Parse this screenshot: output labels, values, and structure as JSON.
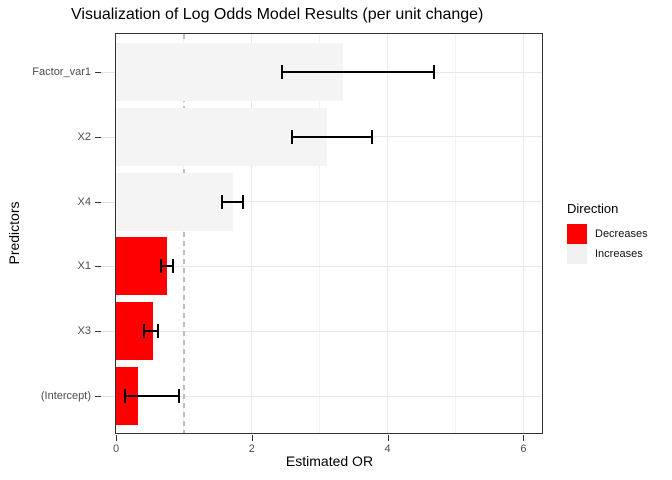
{
  "chart_data": {
    "type": "bar",
    "orientation": "horizontal",
    "title": "Visualization of Log Odds Model Results (per unit change)",
    "xlabel": "Estimated OR",
    "ylabel": "Predictors",
    "x_ticks": [
      0,
      2,
      4,
      6
    ],
    "x_minor_ticks": [
      1,
      3,
      5
    ],
    "xlim": [
      0,
      6.3
    ],
    "grid": "on",
    "reference_line": {
      "x": 1,
      "style": "dashed",
      "color": "#BDBDBD"
    },
    "rows": [
      {
        "label": "Factor_var1",
        "or": 3.35,
        "ci_low": 2.45,
        "ci_high": 4.69,
        "direction": "Increases"
      },
      {
        "label": "X2",
        "or": 3.11,
        "ci_low": 2.59,
        "ci_high": 3.77,
        "direction": "Increases"
      },
      {
        "label": "X4",
        "or": 1.72,
        "ci_low": 1.56,
        "ci_high": 1.87,
        "direction": "Increases"
      },
      {
        "label": "X1",
        "or": 0.75,
        "ci_low": 0.66,
        "ci_high": 0.84,
        "direction": "Decreases"
      },
      {
        "label": "X3",
        "or": 0.55,
        "ci_low": 0.41,
        "ci_high": 0.62,
        "direction": "Decreases"
      },
      {
        "label": "(Intercept)",
        "or": 0.32,
        "ci_low": 0.13,
        "ci_high": 0.93,
        "direction": "Decreases"
      }
    ],
    "legend": {
      "title": "Direction",
      "position": "right",
      "entries": [
        {
          "label": "Decreases",
          "color": "#FF0000"
        },
        {
          "label": "Increases",
          "color": "#F0F0F0"
        }
      ]
    }
  },
  "colors": {
    "decreases": "#FF0000",
    "increases": "#F4F4F4",
    "grid_major": "#E7E7E7",
    "grid_minor": "#F2F2F2",
    "reference_line": "#BDBDBD",
    "error_bar": "#000000",
    "panel_border": "#333333",
    "axis_text": "#4D4D4D",
    "tick_dark": "#333333",
    "tick_light": "#E3E3E3"
  }
}
